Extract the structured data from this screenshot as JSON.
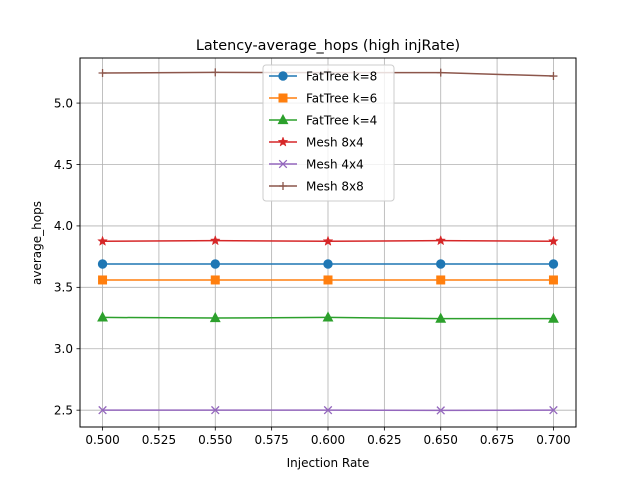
{
  "chart_data": {
    "type": "line",
    "title": "Latency-average_hops (high injRate)",
    "xlabel": "Injection Rate",
    "ylabel": "average_hops",
    "xlim": [
      0.49,
      0.71
    ],
    "ylim": [
      2.363,
      5.367
    ],
    "xticks": [
      0.5,
      0.525,
      0.55,
      0.575,
      0.6,
      0.625,
      0.65,
      0.675,
      0.7
    ],
    "xtick_labels": [
      "0.500",
      "0.525",
      "0.550",
      "0.575",
      "0.600",
      "0.625",
      "0.650",
      "0.675",
      "0.700"
    ],
    "yticks": [
      2.5,
      3.0,
      3.5,
      4.0,
      4.5,
      5.0
    ],
    "ytick_labels": [
      "2.5",
      "3.0",
      "3.5",
      "4.0",
      "4.5",
      "5.0"
    ],
    "grid": true,
    "legend_position": "top-center",
    "x": [
      0.5,
      0.55,
      0.6,
      0.65,
      0.7
    ],
    "series": [
      {
        "name": "FatTree k=8",
        "color": "#1f77b4",
        "marker": "circle",
        "values": [
          3.69,
          3.69,
          3.69,
          3.69,
          3.69
        ]
      },
      {
        "name": "FatTree k=6",
        "color": "#ff7f0e",
        "marker": "square",
        "values": [
          3.56,
          3.56,
          3.56,
          3.56,
          3.56
        ]
      },
      {
        "name": "FatTree k=4",
        "color": "#2ca02c",
        "marker": "triangle",
        "values": [
          3.255,
          3.25,
          3.255,
          3.245,
          3.245
        ]
      },
      {
        "name": "Mesh 8x4",
        "color": "#d62728",
        "marker": "star",
        "values": [
          3.875,
          3.88,
          3.875,
          3.88,
          3.875
        ]
      },
      {
        "name": "Mesh 4x4",
        "color": "#9467bd",
        "marker": "x",
        "values": [
          2.5,
          2.5,
          2.5,
          2.498,
          2.5
        ]
      },
      {
        "name": "Mesh 8x8",
        "color": "#8c564b",
        "marker": "plus",
        "values": [
          5.245,
          5.25,
          5.248,
          5.248,
          5.22
        ]
      }
    ]
  }
}
